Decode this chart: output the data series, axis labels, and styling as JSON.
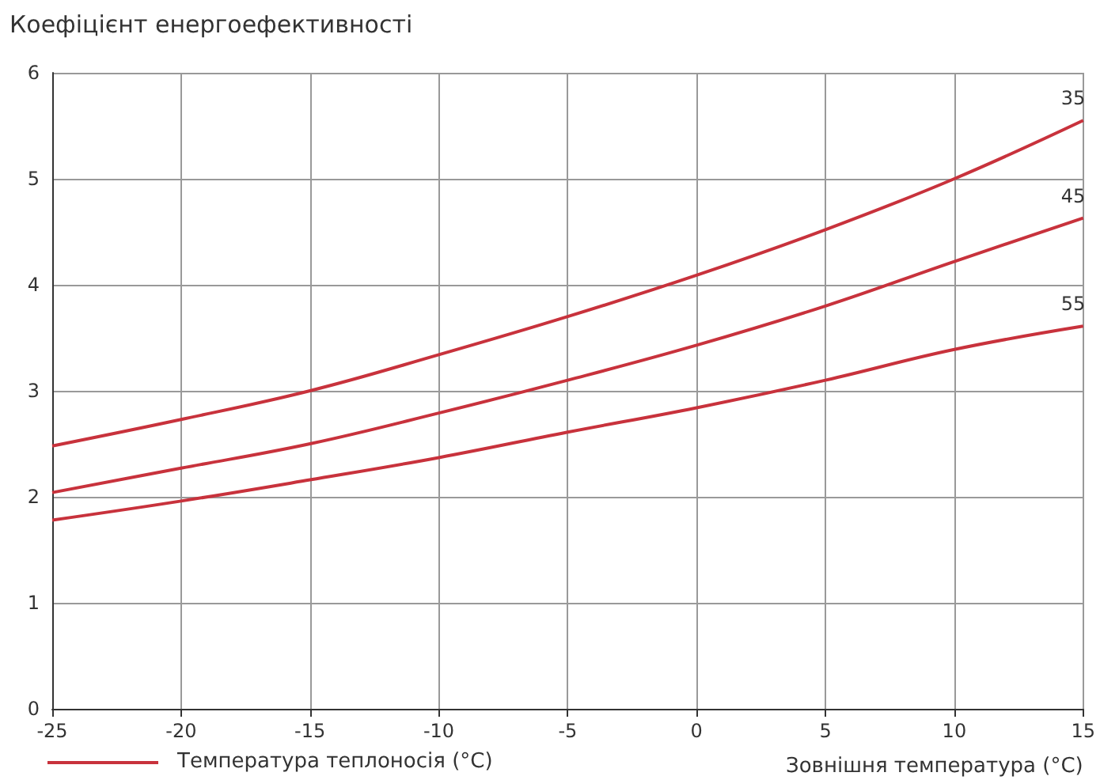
{
  "chart_data": {
    "type": "line",
    "ylabel": "Коефіцієнт енергоефективності",
    "xlabel": "Зовнішня температура (°C)",
    "legend_title": "Температура теплоносія (°C)",
    "x": [
      -25,
      -20,
      -15,
      -10,
      -5,
      0,
      5,
      10,
      15
    ],
    "series": [
      {
        "name": "35",
        "color": "#c8323c",
        "values": [
          2.48,
          2.73,
          3.0,
          3.34,
          3.7,
          4.09,
          4.52,
          5.0,
          5.55
        ]
      },
      {
        "name": "45",
        "color": "#c8323c",
        "values": [
          2.04,
          2.27,
          2.5,
          2.79,
          3.1,
          3.43,
          3.8,
          4.22,
          4.63
        ]
      },
      {
        "name": "55",
        "color": "#c8323c",
        "values": [
          1.78,
          1.96,
          2.16,
          2.37,
          2.61,
          2.84,
          3.1,
          3.39,
          3.61
        ]
      }
    ],
    "xlim": [
      -25,
      15
    ],
    "xticks": [
      -25,
      -20,
      -15,
      -10,
      -5,
      0,
      5,
      10,
      15
    ],
    "ylim": [
      0,
      6
    ],
    "yticks": [
      0,
      1,
      2,
      3,
      4,
      5,
      6
    ],
    "grid": true,
    "marker": "none",
    "line_style": "solid"
  }
}
